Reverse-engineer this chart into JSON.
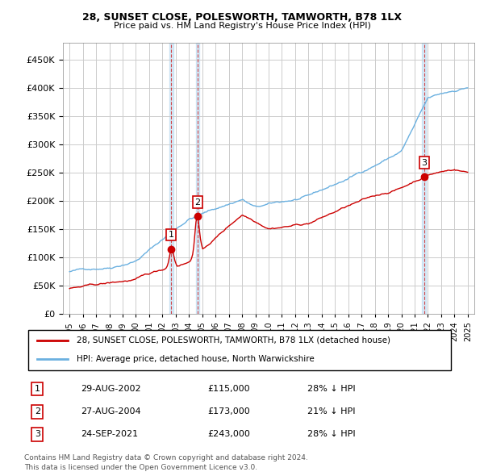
{
  "title1": "28, SUNSET CLOSE, POLESWORTH, TAMWORTH, B78 1LX",
  "title2": "Price paid vs. HM Land Registry's House Price Index (HPI)",
  "legend_line1": "28, SUNSET CLOSE, POLESWORTH, TAMWORTH, B78 1LX (detached house)",
  "legend_line2": "HPI: Average price, detached house, North Warwickshire",
  "table": [
    {
      "num": "1",
      "date": "29-AUG-2002",
      "price": "£115,000",
      "pct": "28% ↓ HPI"
    },
    {
      "num": "2",
      "date": "27-AUG-2004",
      "price": "£173,000",
      "pct": "21% ↓ HPI"
    },
    {
      "num": "3",
      "date": "24-SEP-2021",
      "price": "£243,000",
      "pct": "28% ↓ HPI"
    }
  ],
  "footnote1": "Contains HM Land Registry data © Crown copyright and database right 2024.",
  "footnote2": "This data is licensed under the Open Government Licence v3.0.",
  "sale_points": [
    {
      "year": 2002.65,
      "value": 115000,
      "label": "1"
    },
    {
      "year": 2004.65,
      "value": 173000,
      "label": "2"
    },
    {
      "year": 2021.72,
      "value": 243000,
      "label": "3"
    }
  ],
  "sale_vlines": [
    2002.65,
    2004.65,
    2021.72
  ],
  "hpi_color": "#6ab0e0",
  "price_color": "#cc0000",
  "sale_dot_color": "#cc0000",
  "ylim": [
    0,
    480000
  ],
  "xlim_start": 1994.5,
  "xlim_end": 2025.5,
  "background_color": "#ffffff",
  "grid_color": "#cccccc"
}
